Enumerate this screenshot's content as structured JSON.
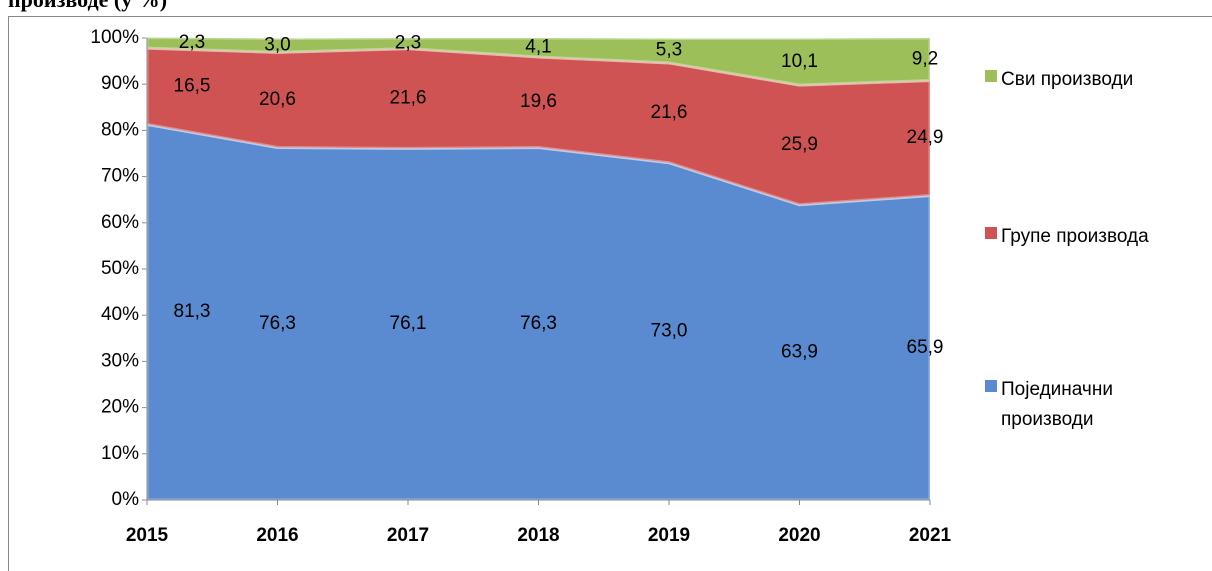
{
  "chart_data": {
    "type": "stacked-area",
    "title": "производе (у %)",
    "categories": [
      "2015",
      "2016",
      "2017",
      "2018",
      "2019",
      "2020",
      "2021"
    ],
    "series": [
      {
        "name": "Појединачни производи",
        "color": "#5a8acf",
        "values": [
          81.3,
          76.3,
          76.1,
          76.3,
          73.0,
          63.9,
          65.9
        ],
        "value_labels": [
          "81,3",
          "76,3",
          "76,1",
          "76,3",
          "73,0",
          "63,9",
          "65,9"
        ]
      },
      {
        "name": "Групе производа",
        "color": "#cf5352",
        "values": [
          16.5,
          20.6,
          21.6,
          19.6,
          21.6,
          25.9,
          24.9
        ],
        "value_labels": [
          "16,5",
          "20,6",
          "21,6",
          "19,6",
          "21,6",
          "25,9",
          "24,9"
        ]
      },
      {
        "name": "Сви производи",
        "color": "#9dbf5a",
        "values": [
          2.3,
          3.0,
          2.3,
          4.1,
          5.3,
          10.1,
          9.2
        ],
        "value_labels": [
          "2,3",
          "3,0",
          "2,3",
          "4,1",
          "5,3",
          "10,1",
          "9,2"
        ]
      }
    ],
    "ylim": [
      0,
      100
    ],
    "yticks": [
      {
        "value": 0,
        "label": "0%"
      },
      {
        "value": 10,
        "label": "10%"
      },
      {
        "value": 20,
        "label": "20%"
      },
      {
        "value": 30,
        "label": "30%"
      },
      {
        "value": 40,
        "label": "40%"
      },
      {
        "value": 50,
        "label": "50%"
      },
      {
        "value": 60,
        "label": "60%"
      },
      {
        "value": 70,
        "label": "70%"
      },
      {
        "value": 80,
        "label": "80%"
      },
      {
        "value": 90,
        "label": "90%"
      },
      {
        "value": 100,
        "label": "100%"
      }
    ],
    "legend": "right"
  }
}
